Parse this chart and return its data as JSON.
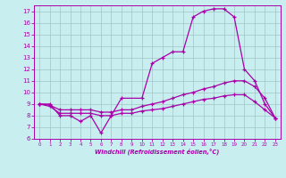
{
  "xlabel": "Windchill (Refroidissement éolien,°C)",
  "bg_color": "#c8eef0",
  "line_color": "#aa00aa",
  "grid_color": "#99bbbb",
  "xlim": [
    -0.5,
    23.5
  ],
  "ylim": [
    6,
    17.5
  ],
  "yticks": [
    6,
    7,
    8,
    9,
    10,
    11,
    12,
    13,
    14,
    15,
    16,
    17
  ],
  "xticks": [
    0,
    1,
    2,
    3,
    4,
    5,
    6,
    7,
    8,
    9,
    10,
    11,
    12,
    13,
    14,
    15,
    16,
    17,
    18,
    19,
    20,
    21,
    22,
    23
  ],
  "line1_x": [
    0,
    1,
    2,
    3,
    4,
    5,
    6,
    7,
    8,
    10,
    11,
    12,
    13,
    14,
    15,
    16,
    17,
    18,
    19,
    20,
    21,
    22,
    23
  ],
  "line1_y": [
    9.0,
    9.0,
    8.0,
    8.0,
    7.5,
    8.0,
    6.5,
    8.0,
    9.5,
    9.5,
    12.5,
    13.0,
    13.5,
    13.5,
    16.5,
    17.0,
    17.2,
    17.2,
    16.5,
    12.0,
    11.0,
    9.0,
    7.8
  ],
  "line2_x": [
    0,
    1,
    2,
    3,
    4,
    5,
    6,
    7,
    8,
    9,
    10,
    11,
    12,
    13,
    14,
    15,
    16,
    17,
    18,
    19,
    20,
    21,
    22,
    23
  ],
  "line2_y": [
    9.0,
    8.9,
    8.5,
    8.5,
    8.5,
    8.5,
    8.3,
    8.3,
    8.5,
    8.5,
    8.8,
    9.0,
    9.2,
    9.5,
    9.8,
    10.0,
    10.3,
    10.5,
    10.8,
    11.0,
    11.0,
    10.5,
    9.5,
    7.8
  ],
  "line3_x": [
    0,
    1,
    2,
    3,
    4,
    5,
    6,
    7,
    8,
    9,
    10,
    11,
    12,
    13,
    14,
    15,
    16,
    17,
    18,
    19,
    20,
    21,
    22,
    23
  ],
  "line3_y": [
    9.0,
    8.8,
    8.2,
    8.2,
    8.2,
    8.2,
    8.0,
    8.0,
    8.2,
    8.2,
    8.4,
    8.5,
    8.6,
    8.8,
    9.0,
    9.2,
    9.4,
    9.5,
    9.7,
    9.8,
    9.8,
    9.2,
    8.5,
    7.8
  ]
}
